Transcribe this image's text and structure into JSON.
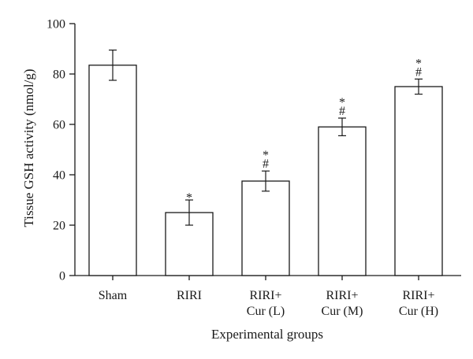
{
  "chart_data": {
    "type": "bar",
    "categories": [
      [
        "Sham"
      ],
      [
        "RIRI"
      ],
      [
        "RIRI+",
        "Cur (L)"
      ],
      [
        "RIRI+",
        "Cur (M)"
      ],
      [
        "RIRI+",
        "Cur (H)"
      ]
    ],
    "values": [
      83.5,
      25.0,
      37.5,
      59.0,
      75.0
    ],
    "errors": [
      6.0,
      5.0,
      4.0,
      3.5,
      3.0
    ],
    "significance": [
      [],
      [
        "*"
      ],
      [
        "*",
        "#"
      ],
      [
        "*",
        "#"
      ],
      [
        "*",
        "#"
      ]
    ],
    "xlabel": "Experimental groups",
    "ylabel": "Tissue GSH activity (nmol/g)",
    "ylim": [
      0,
      100
    ],
    "yticks": [
      0,
      20,
      40,
      60,
      80,
      100
    ],
    "grid": false,
    "colors": {
      "bar_fill": "#ffffff",
      "bar_stroke": "#1a1a1a",
      "axis": "#1a1a1a"
    }
  }
}
